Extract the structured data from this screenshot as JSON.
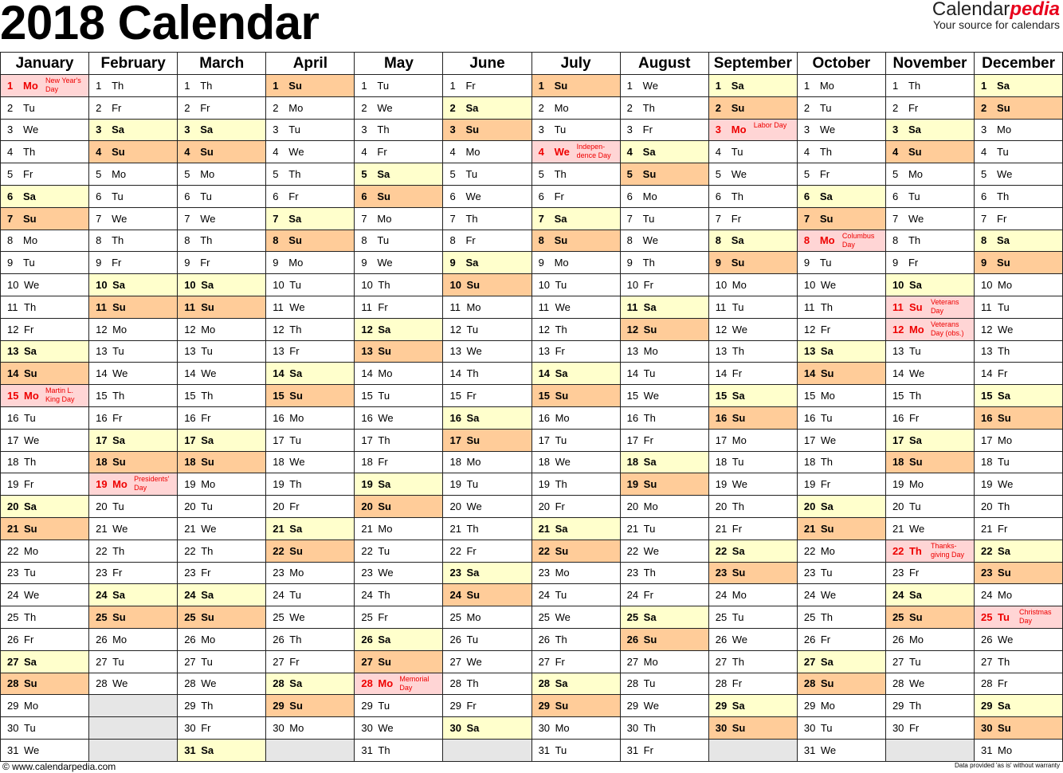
{
  "title": "2018 Calendar",
  "logo": {
    "part1": "Calendar",
    "part2": "pedia",
    "tagline": "Your source for calendars"
  },
  "footer": {
    "left": "© www.calendarpedia.com",
    "right": "Data provided 'as is' without warranty"
  },
  "colors": {
    "saturday": "#ffffcc",
    "sunday": "#ffcc99",
    "holiday": "#ffd5d5",
    "holiday_text": "#ee0000",
    "empty": "#e6e6e6"
  },
  "weekdays": [
    "Mo",
    "Tu",
    "We",
    "Th",
    "Fr",
    "Sa",
    "Su"
  ],
  "months": [
    {
      "name": "January",
      "first_weekday": "Mo",
      "days": 31
    },
    {
      "name": "February",
      "first_weekday": "Th",
      "days": 28
    },
    {
      "name": "March",
      "first_weekday": "Th",
      "days": 31
    },
    {
      "name": "April",
      "first_weekday": "Su",
      "days": 30
    },
    {
      "name": "May",
      "first_weekday": "Tu",
      "days": 31
    },
    {
      "name": "June",
      "first_weekday": "Fr",
      "days": 30
    },
    {
      "name": "July",
      "first_weekday": "Su",
      "days": 31
    },
    {
      "name": "August",
      "first_weekday": "We",
      "days": 31
    },
    {
      "name": "September",
      "first_weekday": "Sa",
      "days": 30
    },
    {
      "name": "October",
      "first_weekday": "Mo",
      "days": 31
    },
    {
      "name": "November",
      "first_weekday": "Th",
      "days": 30
    },
    {
      "name": "December",
      "first_weekday": "Sa",
      "days": 31
    }
  ],
  "holidays": [
    {
      "month": 1,
      "day": 1,
      "name": "New Year's Day"
    },
    {
      "month": 1,
      "day": 15,
      "name": "Martin L. King Day"
    },
    {
      "month": 2,
      "day": 19,
      "name": "Presidents' Day"
    },
    {
      "month": 5,
      "day": 28,
      "name": "Memorial Day"
    },
    {
      "month": 7,
      "day": 4,
      "name": "Indepen-dence Day"
    },
    {
      "month": 9,
      "day": 3,
      "name": "Labor Day"
    },
    {
      "month": 10,
      "day": 8,
      "name": "Columbus Day"
    },
    {
      "month": 11,
      "day": 11,
      "name": "Veterans Day"
    },
    {
      "month": 11,
      "day": 12,
      "name": "Veterans Day (obs.)"
    },
    {
      "month": 11,
      "day": 22,
      "name": "Thanks-giving Day"
    },
    {
      "month": 12,
      "day": 25,
      "name": "Christmas Day"
    }
  ]
}
